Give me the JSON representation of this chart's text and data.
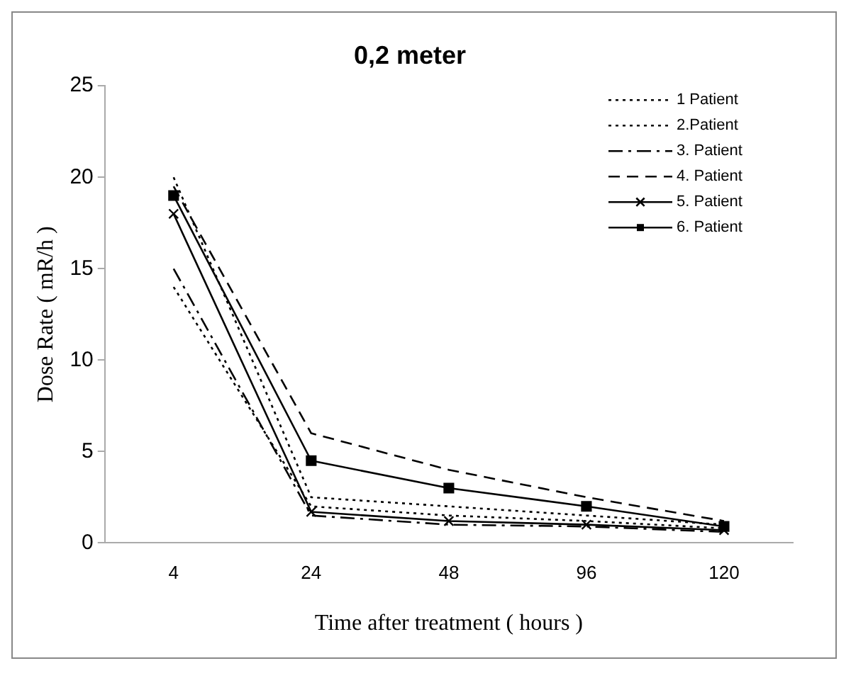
{
  "chart_data": {
    "type": "line",
    "title": "0,2 meter",
    "xlabel": "Time after treatment ( hours )",
    "ylabel": "Dose Rate ( mR/h )",
    "categories": [
      "4",
      "24",
      "48",
      "96",
      "120"
    ],
    "ylim": [
      0,
      25
    ],
    "yticks": [
      0,
      5,
      10,
      15,
      20,
      25
    ],
    "grid": false,
    "legend": "top right",
    "series": [
      {
        "name": "1 Patient",
        "color": "#000000",
        "line_style": "dotted",
        "marker": "none",
        "values": [
          14,
          2.0,
          1.5,
          1.2,
          0.8
        ]
      },
      {
        "name": "2.Patient",
        "color": "#000000",
        "line_style": "dotted",
        "marker": "none",
        "values": [
          20,
          2.5,
          2.0,
          1.5,
          1.0
        ]
      },
      {
        "name": "3. Patient",
        "color": "#000000",
        "line_style": "dashdot",
        "marker": "none",
        "values": [
          15,
          1.5,
          1.0,
          0.9,
          0.6
        ]
      },
      {
        "name": "4. Patient",
        "color": "#000000",
        "line_style": "dashed",
        "marker": "none",
        "values": [
          19.5,
          6,
          4,
          2.5,
          1.2
        ]
      },
      {
        "name": "5. Patient",
        "color": "#000000",
        "line_style": "solid",
        "marker": "cross",
        "values": [
          18,
          1.7,
          1.2,
          1.0,
          0.7
        ]
      },
      {
        "name": "6. Patient",
        "color": "#000000",
        "line_style": "solid",
        "marker": "square",
        "values": [
          19,
          4.5,
          3,
          2,
          0.9
        ]
      }
    ]
  }
}
